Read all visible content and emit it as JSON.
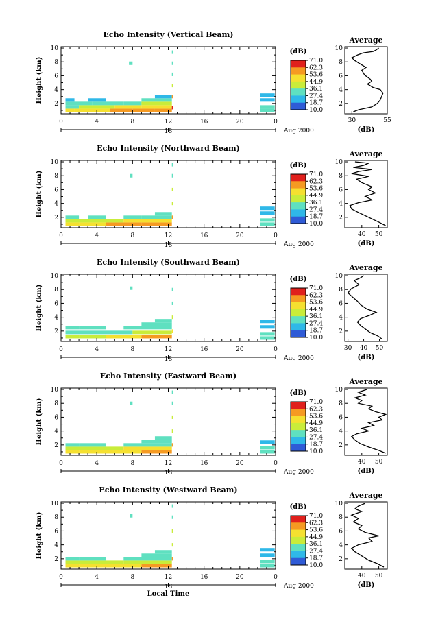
{
  "chart_data": [
    {
      "type": "heatmap",
      "title": "Echo Intensity (Vertical Beam)",
      "ylabel": "Height (km)",
      "x_ticks": [
        "0",
        "4",
        "8",
        "12",
        "16",
        "20",
        "0"
      ],
      "y_ticks": [
        "2",
        "4",
        "6",
        "8",
        "10"
      ],
      "xlim": [
        0,
        24
      ],
      "ylim": [
        0.5,
        10.2
      ],
      "date_marker": "18",
      "date_label": "Aug 2000",
      "colorbar": {
        "unit": "(dB)",
        "ticks": [
          "71.0",
          "62.3",
          "53.6",
          "44.9",
          "36.1",
          "27.4",
          "18.7",
          "10.0"
        ]
      },
      "profile": {
        "title": "Average",
        "xlabel": "(dB)",
        "x_ticks": [
          "30",
          "55"
        ],
        "xlim": [
          25,
          55
        ],
        "points": [
          [
            31,
            0.8
          ],
          [
            35,
            1.1
          ],
          [
            44,
            1.5
          ],
          [
            48,
            2
          ],
          [
            50,
            2.5
          ],
          [
            51,
            3
          ],
          [
            52,
            3.5
          ],
          [
            50,
            4
          ],
          [
            45,
            4.3
          ],
          [
            41,
            4.8
          ],
          [
            44,
            5.2
          ],
          [
            43,
            5.5
          ],
          [
            39,
            6.1
          ],
          [
            37,
            6.8
          ],
          [
            40,
            7.2
          ],
          [
            35,
            7.8
          ],
          [
            32,
            8.2
          ],
          [
            30,
            8.6
          ],
          [
            34,
            9
          ],
          [
            38,
            9.3
          ],
          [
            45,
            9.5
          ],
          [
            47,
            9.7
          ],
          [
            49,
            10
          ]
        ]
      },
      "echo_cells": [
        [
          0.5,
          1.5,
          1,
          45
        ],
        [
          1.5,
          3,
          1,
          50
        ],
        [
          3,
          5.5,
          1,
          52
        ],
        [
          5.5,
          8,
          1,
          53
        ],
        [
          8,
          10.5,
          1,
          55
        ],
        [
          10.5,
          12.4,
          1,
          60
        ],
        [
          0.5,
          2,
          1.5,
          35
        ],
        [
          2,
          6,
          1.5,
          38
        ],
        [
          6,
          9,
          1.5,
          45
        ],
        [
          9,
          12.4,
          1.5,
          47
        ],
        [
          0.5,
          3.5,
          2,
          30
        ],
        [
          3.5,
          7,
          2,
          33
        ],
        [
          7,
          9,
          2,
          35
        ],
        [
          9,
          12.4,
          2,
          38
        ],
        [
          0.5,
          1.5,
          2.5,
          25
        ],
        [
          3,
          5,
          2.5,
          22
        ],
        [
          9,
          12.4,
          2.5,
          30
        ],
        [
          10.5,
          12.4,
          3,
          25
        ],
        [
          7.6,
          8,
          7.8,
          28
        ],
        [
          12.4,
          12.5,
          1.4,
          65
        ],
        [
          12.4,
          12.5,
          3,
          55
        ],
        [
          12.4,
          12.5,
          4.6,
          40
        ],
        [
          12.4,
          12.5,
          6.2,
          35
        ],
        [
          12.4,
          12.5,
          7.8,
          33
        ],
        [
          12.4,
          12.5,
          9.4,
          30
        ],
        [
          22.3,
          23.9,
          1,
          30
        ],
        [
          22.3,
          23.9,
          1.5,
          28
        ],
        [
          22.3,
          23.9,
          2.5,
          25
        ],
        [
          22.3,
          23.9,
          3.2,
          27
        ]
      ]
    },
    {
      "type": "heatmap",
      "title": "Echo Intensity (Northward Beam)",
      "ylabel": "Height (km)",
      "x_ticks": [
        "0",
        "4",
        "8",
        "12",
        "16",
        "20",
        "0"
      ],
      "y_ticks": [
        "2",
        "4",
        "6",
        "8",
        "10"
      ],
      "xlim": [
        0,
        24
      ],
      "ylim": [
        0.5,
        10.2
      ],
      "date_marker": "18",
      "date_label": "Aug 2000",
      "colorbar": {
        "unit": "(dB)",
        "ticks": [
          "71.0",
          "62.3",
          "53.6",
          "44.9",
          "36.1",
          "27.4",
          "18.7",
          "10.0"
        ]
      },
      "profile": {
        "title": "Average",
        "xlabel": "(dB)",
        "x_ticks": [
          "40",
          "50"
        ],
        "xlim": [
          30,
          55
        ],
        "points": [
          [
            54,
            0.8
          ],
          [
            50,
            1.3
          ],
          [
            44,
            2
          ],
          [
            38,
            2.7
          ],
          [
            34,
            3.2
          ],
          [
            33,
            3.7
          ],
          [
            38,
            4.1
          ],
          [
            46,
            4.5
          ],
          [
            42,
            5
          ],
          [
            48,
            5.5
          ],
          [
            44,
            6
          ],
          [
            46,
            6.4
          ],
          [
            40,
            7
          ],
          [
            37,
            7.5
          ],
          [
            44,
            7.9
          ],
          [
            34,
            8.3
          ],
          [
            38,
            8.6
          ],
          [
            46,
            8.9
          ],
          [
            35,
            9.2
          ],
          [
            41,
            9.5
          ],
          [
            44,
            9.8
          ],
          [
            36,
            10
          ]
        ]
      },
      "echo_cells": [
        [
          0.5,
          2,
          1,
          48
        ],
        [
          2,
          5,
          1,
          50
        ],
        [
          5,
          9,
          1,
          55
        ],
        [
          9,
          12.4,
          1,
          57
        ],
        [
          0.5,
          3,
          1.5,
          38
        ],
        [
          3,
          7,
          1.5,
          42
        ],
        [
          7,
          12.4,
          1.5,
          45
        ],
        [
          0.5,
          2,
          2,
          30
        ],
        [
          3,
          5,
          2,
          32
        ],
        [
          7,
          9,
          2,
          33
        ],
        [
          9,
          12.4,
          2,
          35
        ],
        [
          10.5,
          12.4,
          2.5,
          28
        ],
        [
          7.7,
          8,
          8,
          28
        ],
        [
          12.4,
          12.5,
          2,
          58
        ],
        [
          12.4,
          12.5,
          4,
          42
        ],
        [
          12.4,
          12.5,
          6,
          36
        ],
        [
          12.4,
          12.5,
          8,
          32
        ],
        [
          12.4,
          12.5,
          9.6,
          30
        ],
        [
          22.3,
          23.9,
          1,
          31
        ],
        [
          22.3,
          23.9,
          1.6,
          30
        ],
        [
          22.3,
          23.9,
          2.6,
          26
        ],
        [
          22.3,
          23.9,
          3.3,
          27
        ]
      ]
    },
    {
      "type": "heatmap",
      "title": "Echo Intensity (Southward Beam)",
      "ylabel": "Height (km)",
      "x_ticks": [
        "0",
        "4",
        "8",
        "12",
        "16",
        "20",
        "0"
      ],
      "y_ticks": [
        "2",
        "4",
        "6",
        "8",
        "10"
      ],
      "xlim": [
        0,
        24
      ],
      "ylim": [
        0.5,
        10.2
      ],
      "date_marker": "18",
      "date_label": "Aug 2000",
      "colorbar": {
        "unit": "(dB)",
        "ticks": [
          "71.0",
          "62.3",
          "53.6",
          "44.9",
          "36.1",
          "27.4",
          "18.7",
          "10.0"
        ]
      },
      "profile": {
        "title": "Average",
        "xlabel": "(dB)",
        "x_ticks": [
          "30",
          "40",
          "50"
        ],
        "xlim": [
          28,
          55
        ],
        "points": [
          [
            52,
            0.8
          ],
          [
            49,
            1.3
          ],
          [
            44,
            1.8
          ],
          [
            41,
            2.3
          ],
          [
            38,
            2.8
          ],
          [
            36,
            3.3
          ],
          [
            38,
            3.8
          ],
          [
            44,
            4.3
          ],
          [
            48,
            4.7
          ],
          [
            42,
            5.2
          ],
          [
            38,
            5.8
          ],
          [
            36,
            6.3
          ],
          [
            33,
            6.9
          ],
          [
            30,
            7.5
          ],
          [
            32,
            8.1
          ],
          [
            37,
            8.7
          ],
          [
            34,
            9.3
          ],
          [
            38,
            9.7
          ],
          [
            40,
            10
          ]
        ]
      },
      "echo_cells": [
        [
          0.5,
          2,
          1.2,
          36
        ],
        [
          2,
          5,
          1.2,
          38
        ],
        [
          5,
          9,
          1.2,
          52
        ],
        [
          9,
          12.4,
          1.2,
          55
        ],
        [
          0.5,
          4,
          1.8,
          30
        ],
        [
          4,
          8,
          1.8,
          35
        ],
        [
          8,
          12.4,
          1.8,
          42
        ],
        [
          0.5,
          2,
          2.5,
          28
        ],
        [
          2,
          5,
          2.5,
          30
        ],
        [
          7,
          12.4,
          2.5,
          35
        ],
        [
          9,
          12.4,
          3,
          30
        ],
        [
          10.5,
          12.4,
          3.5,
          28
        ],
        [
          7.7,
          8,
          8.2,
          28
        ],
        [
          12.4,
          12.5,
          2,
          52
        ],
        [
          12.4,
          12.5,
          4,
          38
        ],
        [
          12.4,
          12.5,
          6,
          34
        ],
        [
          12.4,
          12.5,
          8,
          32
        ],
        [
          22.3,
          23.9,
          1,
          30
        ],
        [
          22.3,
          23.9,
          1.6,
          28
        ],
        [
          22.3,
          23.9,
          2.6,
          26
        ],
        [
          22.3,
          23.9,
          3.4,
          27
        ]
      ]
    },
    {
      "type": "heatmap",
      "title": "Echo Intensity (Eastward Beam)",
      "ylabel": "Height (km)",
      "x_ticks": [
        "0",
        "4",
        "8",
        "12",
        "16",
        "20",
        "0"
      ],
      "y_ticks": [
        "2",
        "4",
        "6",
        "8",
        "10"
      ],
      "xlim": [
        0,
        24
      ],
      "ylim": [
        0.5,
        10.2
      ],
      "date_marker": "18",
      "date_label": "Aug 2000",
      "colorbar": {
        "unit": "(dB)",
        "ticks": [
          "71.0",
          "62.3",
          "53.6",
          "44.9",
          "36.1",
          "27.4",
          "18.7",
          "10.0"
        ]
      },
      "profile": {
        "title": "Average",
        "xlabel": "(dB)",
        "x_ticks": [
          "40",
          "50"
        ],
        "xlim": [
          30,
          55
        ],
        "points": [
          [
            54,
            0.8
          ],
          [
            50,
            1.2
          ],
          [
            44,
            1.7
          ],
          [
            39,
            2.2
          ],
          [
            36,
            2.7
          ],
          [
            34,
            3.2
          ],
          [
            37,
            3.6
          ],
          [
            44,
            4
          ],
          [
            40,
            4.4
          ],
          [
            47,
            4.8
          ],
          [
            44,
            5.2
          ],
          [
            52,
            5.6
          ],
          [
            50,
            6
          ],
          [
            54,
            6.4
          ],
          [
            48,
            6.8
          ],
          [
            44,
            7.2
          ],
          [
            46,
            7.6
          ],
          [
            38,
            8
          ],
          [
            40,
            8.4
          ],
          [
            36,
            8.8
          ],
          [
            42,
            9.2
          ],
          [
            38,
            9.6
          ],
          [
            43,
            10
          ]
        ]
      },
      "echo_cells": [
        [
          0.5,
          2,
          1,
          48
        ],
        [
          2,
          5,
          1,
          50
        ],
        [
          5,
          9,
          1,
          52
        ],
        [
          9,
          12.4,
          1,
          55
        ],
        [
          0.5,
          3,
          1.5,
          38
        ],
        [
          3,
          7,
          1.5,
          40
        ],
        [
          7,
          12.4,
          1.5,
          45
        ],
        [
          0.5,
          2,
          2,
          32
        ],
        [
          2,
          5,
          2,
          30
        ],
        [
          7,
          12.4,
          2,
          35
        ],
        [
          9,
          12.4,
          2.5,
          30
        ],
        [
          10.5,
          12.4,
          3,
          28
        ],
        [
          7.7,
          8,
          8,
          28
        ],
        [
          12.4,
          12.5,
          2,
          56
        ],
        [
          12.4,
          12.5,
          4,
          40
        ],
        [
          12.4,
          12.5,
          6,
          36
        ],
        [
          12.4,
          12.5,
          8,
          32
        ],
        [
          12.4,
          12.5,
          9.6,
          30
        ],
        [
          22.3,
          23.9,
          1,
          30
        ],
        [
          22.3,
          23.9,
          1.6,
          28
        ],
        [
          22.3,
          23.9,
          2.4,
          26
        ]
      ]
    },
    {
      "type": "heatmap",
      "title": "Echo Intensity (Westward Beam)",
      "ylabel": "Height (km)",
      "x_ticks": [
        "0",
        "4",
        "8",
        "12",
        "16",
        "20",
        "0"
      ],
      "y_ticks": [
        "2",
        "4",
        "6",
        "8",
        "10"
      ],
      "xlim": [
        0,
        24
      ],
      "ylim": [
        0.5,
        10.2
      ],
      "date_marker": "18",
      "date_label": "Aug 2000",
      "xlabel": "Local Time",
      "colorbar": {
        "unit": "(dB)",
        "ticks": [
          "71.0",
          "62.3",
          "53.6",
          "44.9",
          "36.1",
          "27.4",
          "18.7",
          "10.0"
        ]
      },
      "profile": {
        "title": "Average",
        "xlabel": "(dB)",
        "x_ticks": [
          "40",
          "50"
        ],
        "xlim": [
          30,
          55
        ],
        "points": [
          [
            53,
            0.8
          ],
          [
            49,
            1.3
          ],
          [
            44,
            1.8
          ],
          [
            40,
            2.4
          ],
          [
            36,
            3
          ],
          [
            34,
            3.5
          ],
          [
            38,
            4
          ],
          [
            46,
            4.5
          ],
          [
            44,
            5
          ],
          [
            50,
            5.3
          ],
          [
            42,
            5.8
          ],
          [
            38,
            6.3
          ],
          [
            40,
            6.8
          ],
          [
            35,
            7.3
          ],
          [
            38,
            7.8
          ],
          [
            34,
            8.3
          ],
          [
            40,
            8.8
          ],
          [
            36,
            9.2
          ],
          [
            38,
            9.6
          ],
          [
            42,
            10
          ]
        ]
      },
      "echo_cells": [
        [
          0.5,
          2,
          1,
          46
        ],
        [
          2,
          5,
          1,
          48
        ],
        [
          5,
          9,
          1,
          52
        ],
        [
          9,
          12.4,
          1,
          55
        ],
        [
          0.5,
          3,
          1.5,
          36
        ],
        [
          3,
          7,
          1.5,
          38
        ],
        [
          7,
          12.4,
          1.5,
          43
        ],
        [
          0.5,
          2,
          2,
          30
        ],
        [
          2,
          5,
          2,
          29
        ],
        [
          7,
          12.4,
          2,
          34
        ],
        [
          9,
          12.4,
          2.5,
          30
        ],
        [
          10.5,
          12.4,
          3,
          28
        ],
        [
          7.7,
          8,
          8.2,
          28
        ],
        [
          12.4,
          12.5,
          2,
          55
        ],
        [
          12.4,
          12.5,
          4,
          40
        ],
        [
          12.4,
          12.5,
          6,
          36
        ],
        [
          12.4,
          12.5,
          8,
          32
        ],
        [
          12.4,
          12.5,
          9.6,
          30
        ],
        [
          22.3,
          23.9,
          1,
          30
        ],
        [
          22.3,
          23.9,
          1.6,
          28
        ],
        [
          22.3,
          23.9,
          2.5,
          26
        ],
        [
          22.3,
          23.9,
          3.3,
          27
        ]
      ]
    }
  ]
}
